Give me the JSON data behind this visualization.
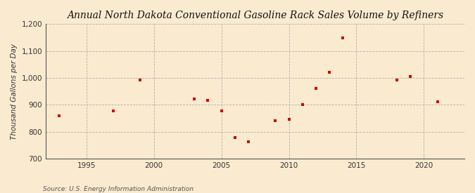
{
  "title": "Annual North Dakota Conventional Gasoline Rack Sales Volume by Refiners",
  "ylabel": "Thousand Gallons per Day",
  "source": "Source: U.S. Energy Information Administration",
  "background_color": "#faebd0",
  "plot_bg_color": "#faebd0",
  "marker_color": "#cc0000",
  "years": [
    1993,
    1997,
    1999,
    2003,
    2004,
    2005,
    2006,
    2007,
    2009,
    2010,
    2011,
    2012,
    2013,
    2014,
    2018,
    2019,
    2021
  ],
  "values": [
    858,
    878,
    993,
    922,
    916,
    876,
    779,
    762,
    840,
    845,
    900,
    962,
    1020,
    1148,
    993,
    1005,
    912
  ],
  "xlim": [
    1992,
    2023
  ],
  "ylim": [
    700,
    1200
  ],
  "yticks": [
    700,
    800,
    900,
    1000,
    1100,
    1200
  ],
  "ytick_labels": [
    "700",
    "800",
    "900",
    "1,000",
    "1,100",
    "1,200"
  ],
  "xticks": [
    1995,
    2000,
    2005,
    2010,
    2015,
    2020
  ],
  "title_fontsize": 10,
  "label_fontsize": 7.5,
  "tick_fontsize": 7.5,
  "source_fontsize": 6.5
}
